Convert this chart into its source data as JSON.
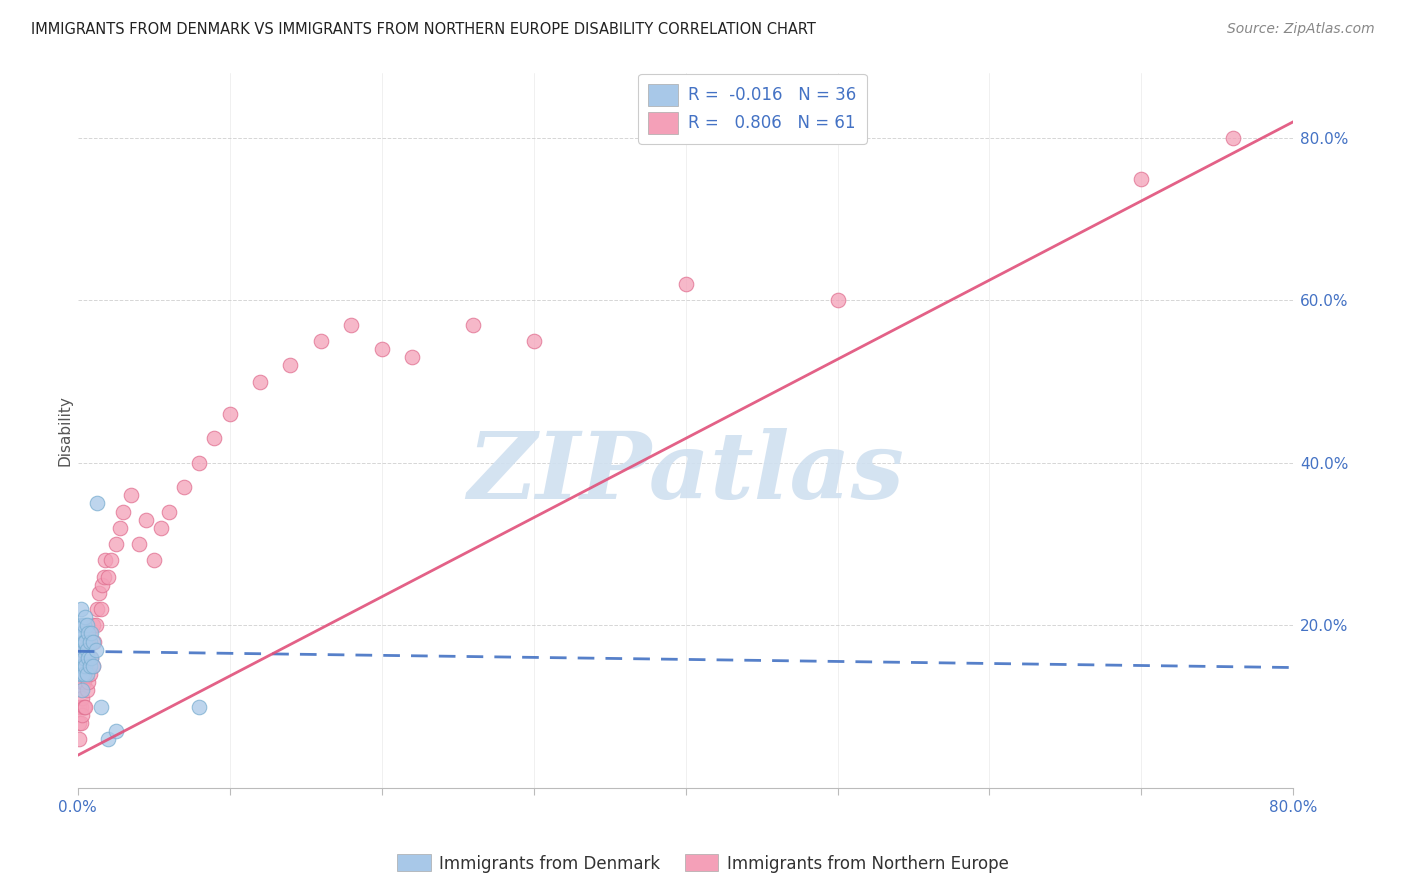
{
  "title": "IMMIGRANTS FROM DENMARK VS IMMIGRANTS FROM NORTHERN EUROPE DISABILITY CORRELATION CHART",
  "source": "Source: ZipAtlas.com",
  "ylabel": "Disability",
  "series1_label": "Immigrants from Denmark",
  "series1_color": "#a8c8e8",
  "series1_edge_color": "#7aaed0",
  "series1_line_color": "#4472c4",
  "series1_R": -0.016,
  "series1_N": 36,
  "series2_label": "Immigrants from Northern Europe",
  "series2_color": "#f4a0b8",
  "series2_edge_color": "#e07090",
  "series2_line_color": "#e0507a",
  "series2_R": 0.806,
  "series2_N": 61,
  "xlim": [
    0.0,
    0.8
  ],
  "ylim": [
    0.0,
    0.88
  ],
  "ytick_vals": [
    0.0,
    0.2,
    0.4,
    0.6,
    0.8
  ],
  "ytick_labels": [
    "",
    "20.0%",
    "40.0%",
    "60.0%",
    "80.0%"
  ],
  "xtick_vals": [
    0.0,
    0.1,
    0.2,
    0.3,
    0.4,
    0.5,
    0.6,
    0.7,
    0.8
  ],
  "xtick_labels": [
    "0.0%",
    "",
    "",
    "",
    "",
    "",
    "",
    "",
    "80.0%"
  ],
  "background_color": "#ffffff",
  "grid_color": "#cccccc",
  "watermark_text": "ZIPatlas",
  "watermark_color": "#d0e0f0",
  "dk_x": [
    0.001,
    0.001,
    0.001,
    0.002,
    0.002,
    0.002,
    0.002,
    0.003,
    0.003,
    0.003,
    0.003,
    0.003,
    0.004,
    0.004,
    0.004,
    0.004,
    0.005,
    0.005,
    0.005,
    0.006,
    0.006,
    0.006,
    0.007,
    0.007,
    0.008,
    0.008,
    0.009,
    0.009,
    0.01,
    0.01,
    0.012,
    0.013,
    0.015,
    0.02,
    0.025,
    0.08
  ],
  "dk_y": [
    0.14,
    0.15,
    0.16,
    0.18,
    0.19,
    0.2,
    0.22,
    0.12,
    0.14,
    0.15,
    0.17,
    0.19,
    0.14,
    0.16,
    0.18,
    0.2,
    0.15,
    0.18,
    0.21,
    0.14,
    0.17,
    0.2,
    0.16,
    0.19,
    0.15,
    0.18,
    0.16,
    0.19,
    0.15,
    0.18,
    0.17,
    0.35,
    0.1,
    0.06,
    0.07,
    0.1
  ],
  "ne_x": [
    0.001,
    0.001,
    0.001,
    0.002,
    0.002,
    0.002,
    0.002,
    0.003,
    0.003,
    0.003,
    0.003,
    0.004,
    0.004,
    0.004,
    0.005,
    0.005,
    0.005,
    0.006,
    0.006,
    0.007,
    0.007,
    0.008,
    0.008,
    0.009,
    0.01,
    0.01,
    0.011,
    0.012,
    0.013,
    0.014,
    0.015,
    0.016,
    0.017,
    0.018,
    0.02,
    0.022,
    0.025,
    0.028,
    0.03,
    0.035,
    0.04,
    0.045,
    0.05,
    0.055,
    0.06,
    0.07,
    0.08,
    0.09,
    0.1,
    0.12,
    0.14,
    0.16,
    0.18,
    0.2,
    0.22,
    0.26,
    0.3,
    0.4,
    0.5,
    0.7,
    0.76
  ],
  "ne_y": [
    0.06,
    0.08,
    0.1,
    0.08,
    0.1,
    0.12,
    0.14,
    0.09,
    0.11,
    0.13,
    0.16,
    0.1,
    0.13,
    0.16,
    0.1,
    0.14,
    0.17,
    0.12,
    0.16,
    0.13,
    0.18,
    0.14,
    0.19,
    0.16,
    0.15,
    0.2,
    0.18,
    0.2,
    0.22,
    0.24,
    0.22,
    0.25,
    0.26,
    0.28,
    0.26,
    0.28,
    0.3,
    0.32,
    0.34,
    0.36,
    0.3,
    0.33,
    0.28,
    0.32,
    0.34,
    0.37,
    0.4,
    0.43,
    0.46,
    0.5,
    0.52,
    0.55,
    0.57,
    0.54,
    0.53,
    0.57,
    0.55,
    0.62,
    0.6,
    0.75,
    0.8
  ],
  "dk_line_x": [
    0.0,
    0.8
  ],
  "dk_line_y": [
    0.168,
    0.148
  ],
  "ne_line_x": [
    0.0,
    0.8
  ],
  "ne_line_y": [
    0.04,
    0.82
  ]
}
